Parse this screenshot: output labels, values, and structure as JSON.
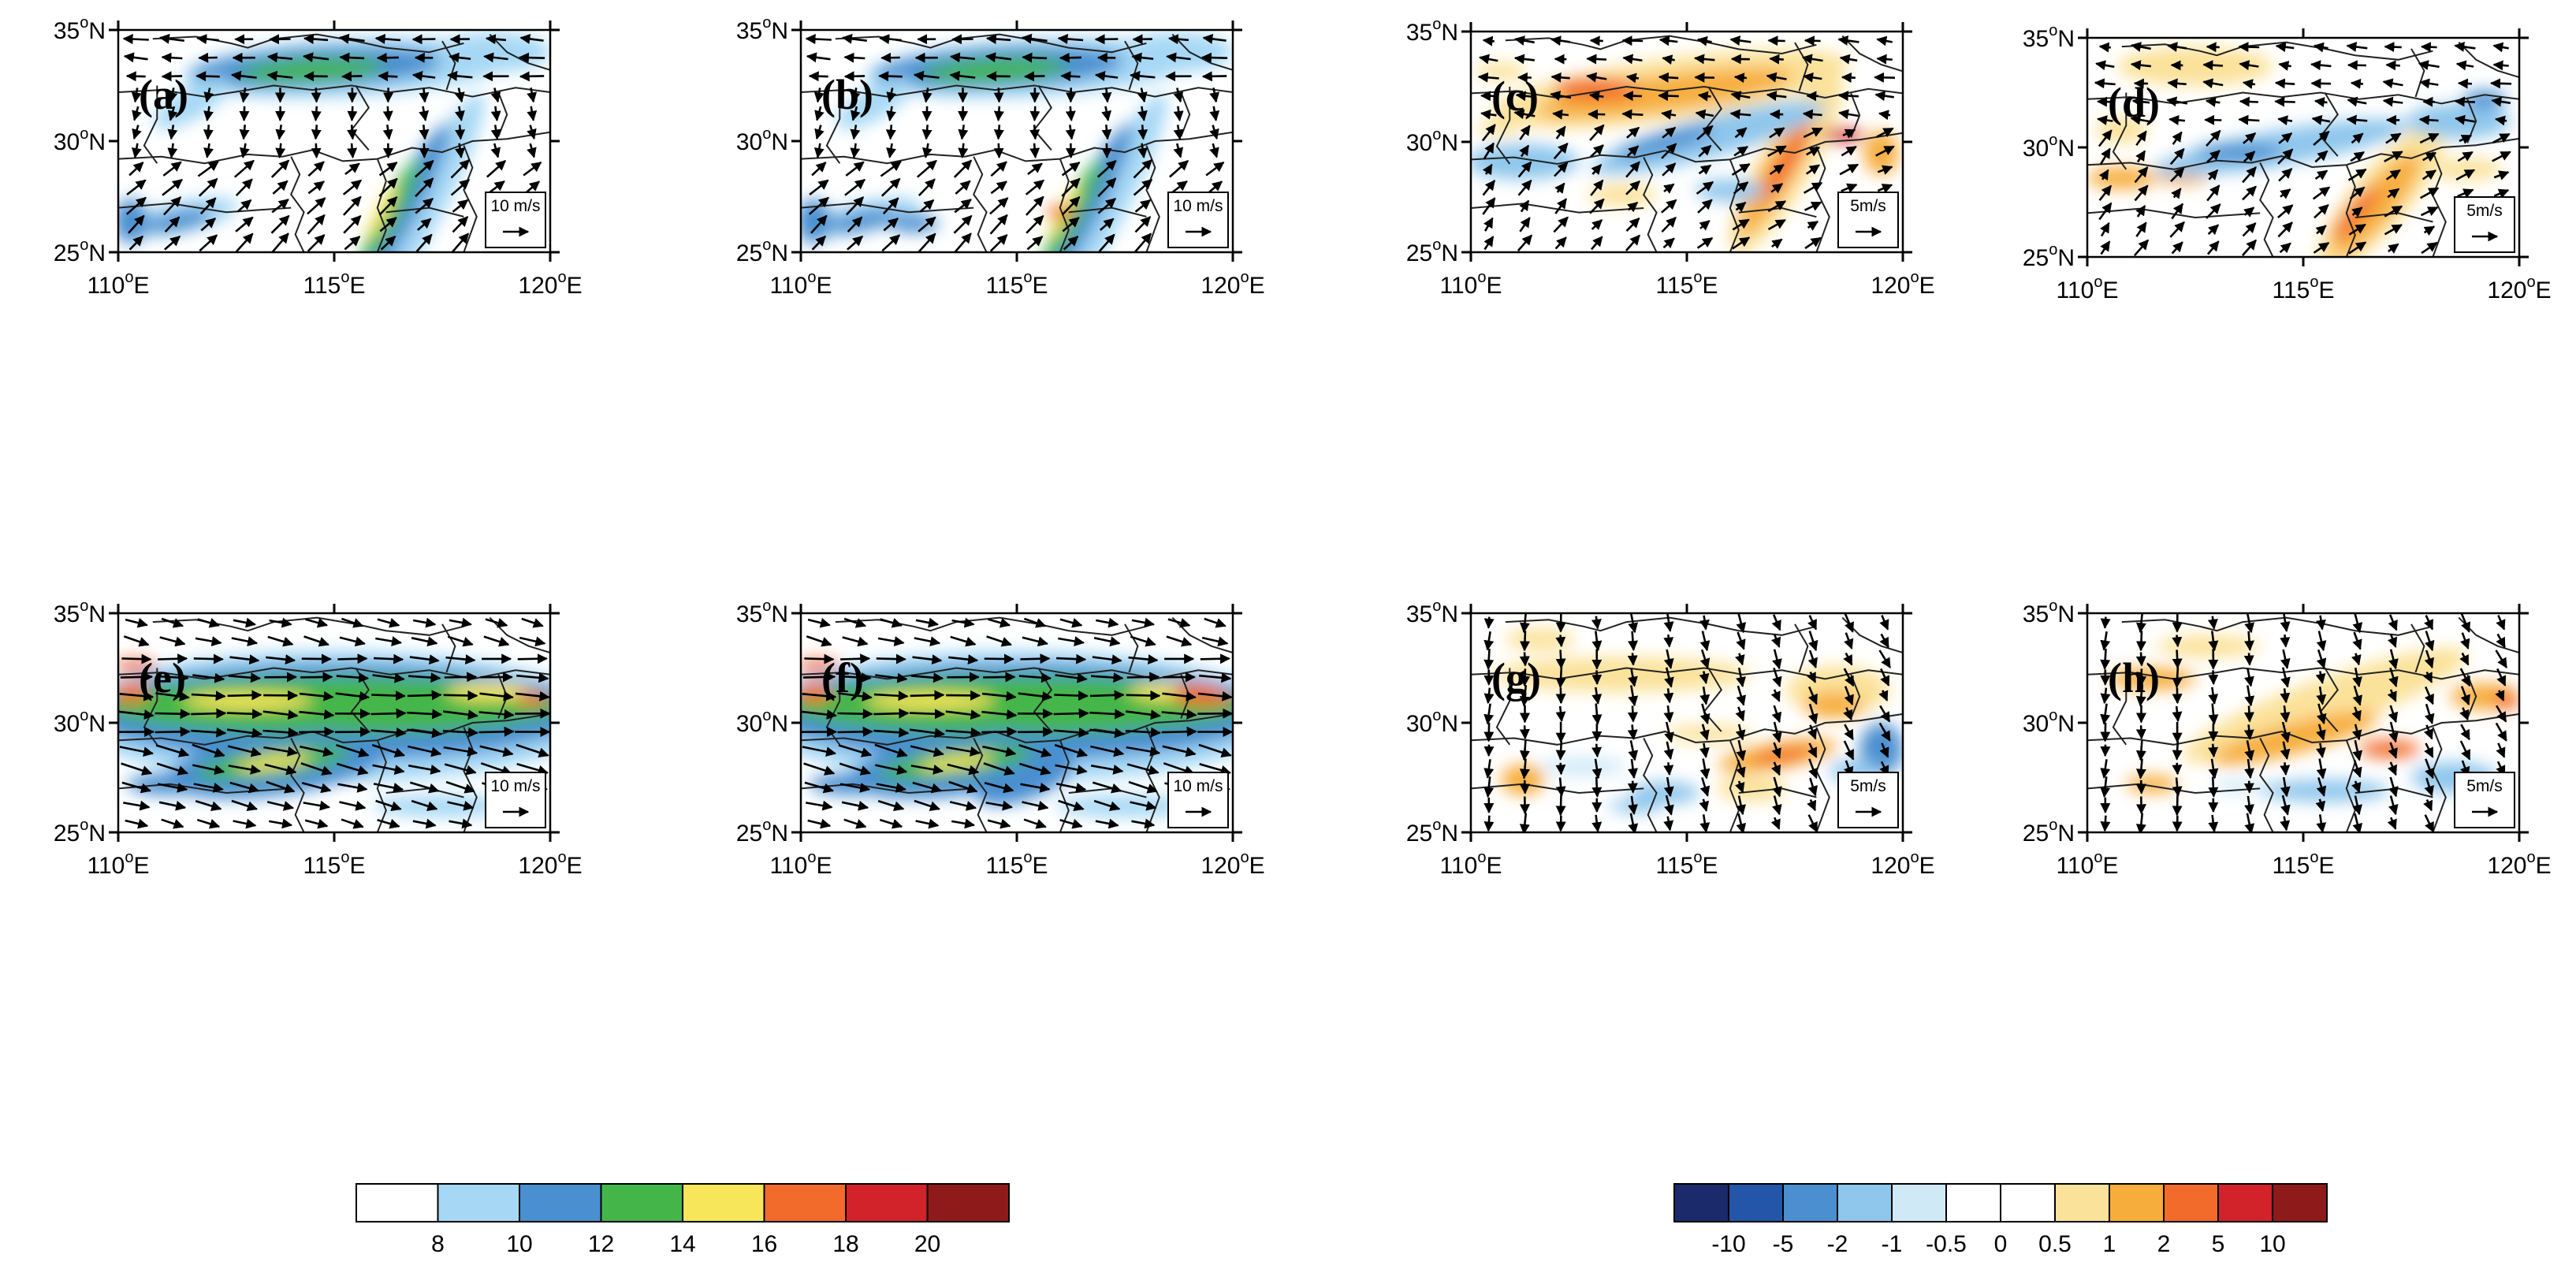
{
  "figure": {
    "lat_ticks": [
      "25°N",
      "30°N",
      "35°N"
    ],
    "lon_ticks": [
      "110°E",
      "115°E",
      "120°E"
    ],
    "lat_values": [
      25,
      30,
      35
    ],
    "lon_values": [
      110,
      115,
      120
    ],
    "panels": [
      {
        "id": "a",
        "label": "(a)",
        "field": "wind-speed",
        "scale_label": "10 m/s"
      },
      {
        "id": "b",
        "label": "(b)",
        "field": "wind-speed",
        "scale_label": "10 m/s"
      },
      {
        "id": "c",
        "label": "(c)",
        "field": "difference",
        "scale_label": "5m/s"
      },
      {
        "id": "d",
        "label": "(d)",
        "field": "difference",
        "scale_label": "5m/s"
      },
      {
        "id": "e",
        "label": "(e)",
        "field": "wind-speed",
        "scale_label": "10 m/s"
      },
      {
        "id": "f",
        "label": "(f)",
        "field": "wind-speed",
        "scale_label": "10 m/s"
      },
      {
        "id": "g",
        "label": "(g)",
        "field": "difference",
        "scale_label": "5m/s"
      },
      {
        "id": "h",
        "label": "(h)",
        "field": "difference",
        "scale_label": "5m/s"
      }
    ]
  },
  "colorbar_speed": {
    "colors": [
      "#ffffff",
      "#a6d8f5",
      "#4a8fd0",
      "#44b649",
      "#f7e65a",
      "#f26b2b",
      "#d2222a",
      "#8e1a1a"
    ],
    "labels": [
      "8",
      "10",
      "12",
      "14",
      "16",
      "18",
      "20"
    ]
  },
  "colorbar_diff": {
    "colors": [
      "#1b2a6b",
      "#2356a8",
      "#4b8fd0",
      "#8ec6ec",
      "#cfe9f7",
      "#ffffff",
      "#ffffff",
      "#fbe29a",
      "#f7ad3c",
      "#f26b2b",
      "#d2222a",
      "#8e1a1a"
    ],
    "labels": [
      "-10",
      "-5",
      "-2",
      "-1",
      "-0.5",
      "0",
      "0.5",
      "1",
      "2",
      "5",
      "10"
    ]
  }
}
